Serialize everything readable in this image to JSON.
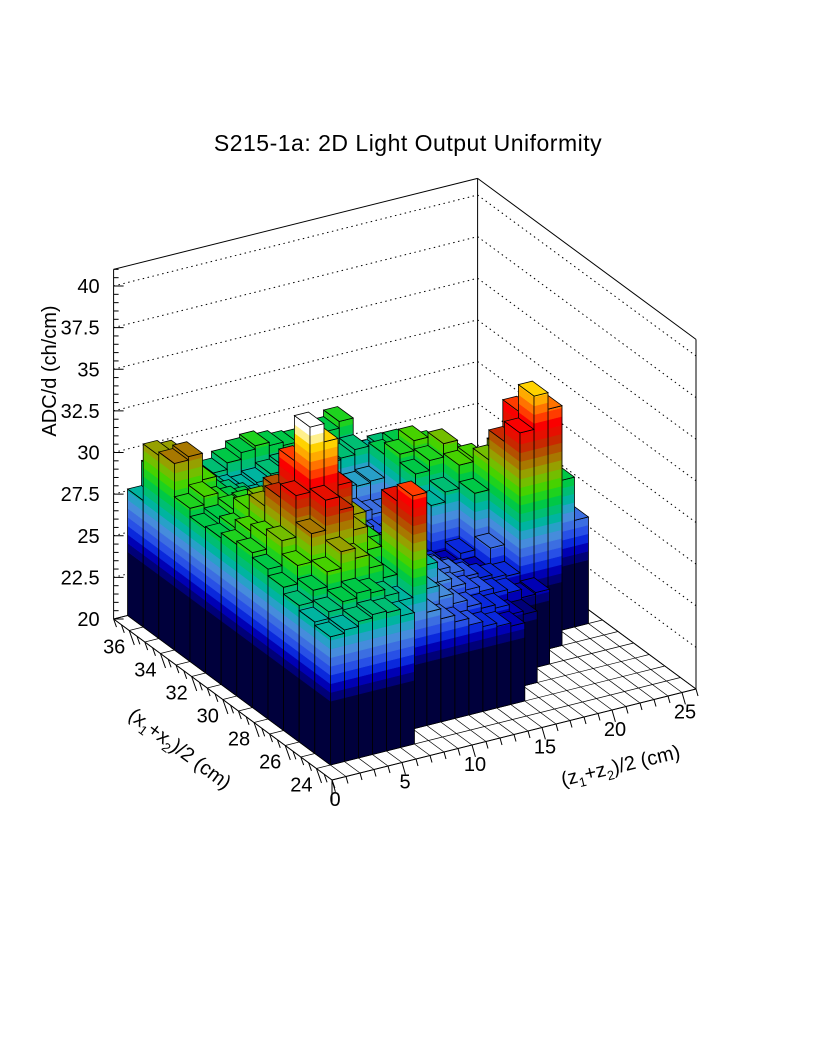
{
  "title": "S215-1a: 2D Light Output Uniformity",
  "chart_data": {
    "type": "lego3d",
    "title": "S215-1a: 2D Light Output Uniformity",
    "x_axis": {
      "title_parts": [
        {
          "t": "(x"
        },
        {
          "t": "1",
          "sub": true
        },
        {
          "t": "+x"
        },
        {
          "t": "2",
          "sub": true
        },
        {
          "t": ")/2 (cm)"
        }
      ],
      "labels": [
        24,
        26,
        28,
        30,
        32,
        34,
        36
      ],
      "range": [
        23,
        37
      ],
      "minor_step": 0.5
    },
    "y_axis": {
      "title_parts": [
        {
          "t": "(z"
        },
        {
          "t": "1",
          "sub": true
        },
        {
          "t": "+z"
        },
        {
          "t": "2",
          "sub": true
        },
        {
          "t": ")/2 (cm)"
        }
      ],
      "labels": [
        0,
        5,
        10,
        15,
        20,
        25
      ],
      "range": [
        0,
        26
      ],
      "minor_step": 1
    },
    "z_axis": {
      "title_parts": [
        {
          "t": "ADC/d (ch/cm)"
        }
      ],
      "labels": [
        "20",
        "22.5",
        "25",
        "27.5",
        "30",
        "32.5",
        "35",
        "37.5",
        "40"
      ],
      "label_values": [
        20,
        22.5,
        25,
        27.5,
        30,
        32.5,
        35,
        37.5,
        40
      ],
      "range": [
        20,
        41
      ],
      "minor_step": 0.5
    },
    "wall_line_values": [
      22.5,
      25,
      27.5,
      30,
      32.5,
      35,
      37.5,
      40
    ],
    "palette": {
      "zmin": 23.3,
      "zmax": 36.9,
      "colors": [
        "#00003c",
        "#000078",
        "#0000b4",
        "#0a28dc",
        "#2850e6",
        "#3c6ee1",
        "#468cdc",
        "#28a0c8",
        "#00b4a0",
        "#00be73",
        "#00c846",
        "#1ed21e",
        "#46d200",
        "#73be00",
        "#96a000",
        "#a87800",
        "#b45000",
        "#c82800",
        "#e60f00",
        "#fa0000",
        "#ff3c00",
        "#ff7300",
        "#ffaa00",
        "#ffd200",
        "#fff08c",
        "#ffffff"
      ]
    },
    "grid": {
      "u_start": 1,
      "v_start": 24,
      "base_value": 20,
      "values": [
        [
          27.7,
          27.9,
          28.2,
          28.6,
          29.0,
          29.3,
          29.1,
          28.8,
          28.7,
          29.2,
          31.2,
          31.0,
          27.6
        ],
        [
          27.9,
          28.3,
          28.9,
          29.7,
          30.5,
          30.1,
          29.7,
          29.2,
          29.0,
          29.7,
          31.4,
          30.8,
          29.1
        ],
        [
          28.2,
          28.7,
          29.8,
          31.4,
          33.0,
          32.2,
          31.0,
          30.1,
          29.4,
          29.2,
          29.8,
          29.4,
          28.7
        ],
        [
          28.4,
          29.0,
          30.8,
          33.2,
          36.9,
          34.2,
          31.8,
          30.4,
          29.5,
          29.0,
          28.8,
          28.6,
          28.3
        ],
        [
          28.3,
          28.8,
          30.2,
          32.4,
          35.8,
          33.4,
          31.2,
          30.0,
          29.2,
          28.8,
          28.5,
          28.2,
          28.0
        ],
        [
          27.9,
          28.4,
          29.4,
          31.0,
          33.0,
          31.8,
          30.2,
          29.4,
          28.8,
          28.4,
          28.1,
          27.9,
          28.2
        ],
        [
          null,
          27.9,
          28.6,
          29.6,
          31.0,
          30.2,
          29.4,
          28.8,
          28.3,
          28.0,
          27.8,
          27.7,
          28.6
        ],
        [
          null,
          34.0,
          33.0,
          28.8,
          29.4,
          29.0,
          28.6,
          28.2,
          27.9,
          27.7,
          27.6,
          27.9,
          29.0
        ],
        [
          null,
          26.8,
          28.0,
          28.3,
          28.6,
          28.4,
          28.1,
          27.8,
          27.6,
          27.5,
          27.7,
          28.2,
          29.2
        ],
        [
          null,
          26.2,
          27.3,
          28.1,
          27.9,
          27.7,
          27.5,
          27.3,
          27.2,
          27.4,
          27.8,
          28.4,
          29.0
        ],
        [
          null,
          25.8,
          26.6,
          27.8,
          27.4,
          27.1,
          26.9,
          26.8,
          26.9,
          27.2,
          27.7,
          28.3,
          28.8
        ],
        [
          null,
          25.4,
          26.0,
          26.6,
          26.9,
          26.5,
          26.2,
          26.1,
          26.3,
          26.8,
          27.4,
          28.1,
          28.7
        ],
        [
          null,
          25.1,
          25.6,
          26.1,
          26.4,
          26.0,
          25.7,
          25.5,
          25.8,
          26.4,
          27.2,
          28.0,
          28.8
        ],
        [
          null,
          24.9,
          25.3,
          25.7,
          26.0,
          25.6,
          25.2,
          25.0,
          25.4,
          26.1,
          27.1,
          28.1,
          29.0
        ],
        [
          null,
          24.7,
          25.1,
          25.4,
          25.6,
          25.2,
          24.9,
          24.7,
          25.2,
          26.0,
          27.2,
          28.4,
          29.4
        ],
        [
          null,
          null,
          24.5,
          25.1,
          25.3,
          24.9,
          24.7,
          27.6,
          28.8,
          29.3,
          28.6,
          27.9,
          27.2
        ],
        [
          null,
          null,
          24.3,
          24.9,
          25.1,
          24.8,
          25.2,
          28.2,
          29.4,
          29.9,
          29.0,
          28.1,
          27.0
        ],
        [
          null,
          null,
          null,
          24.4,
          25.0,
          26.0,
          28.6,
          29.6,
          30.2,
          29.4,
          28.4,
          27.4,
          26.6
        ],
        [
          null,
          null,
          null,
          24.5,
          33.4,
          32.2,
          30.4,
          29.8,
          29.2,
          28.6,
          27.8,
          27.0,
          null
        ],
        [
          null,
          null,
          null,
          null,
          35.4,
          33.8,
          30.8,
          29.4,
          28.8,
          28.2,
          27.4,
          26.6,
          null
        ],
        [
          null,
          null,
          null,
          null,
          34.4,
          33.0,
          30.0,
          29.0,
          28.4,
          27.6,
          26.8,
          null,
          null
        ],
        [
          null,
          null,
          null,
          null,
          null,
          32.0,
          30.6,
          28.8,
          27.8,
          27.0,
          26.2,
          null,
          null
        ],
        [
          null,
          null,
          null,
          null,
          null,
          29.0,
          28.2,
          27.4,
          26.6,
          25.8,
          null,
          null,
          null
        ],
        [
          null,
          null,
          null,
          null,
          null,
          26.4,
          25.8,
          25.2,
          24.3,
          null,
          null,
          null,
          null
        ]
      ]
    }
  }
}
